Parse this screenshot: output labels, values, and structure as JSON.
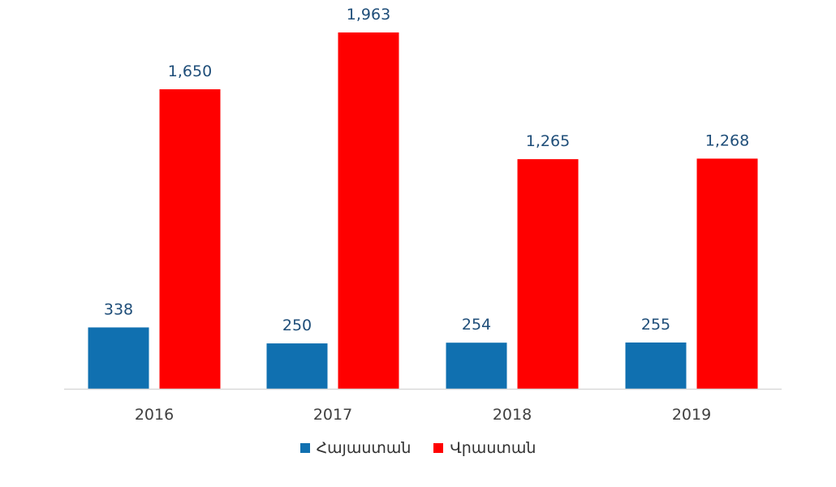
{
  "chart_data": {
    "type": "bar",
    "categories": [
      "2016",
      "2017",
      "2018",
      "2019"
    ],
    "series": [
      {
        "name": "Հայաստան",
        "values": [
          338,
          250,
          254,
          255
        ],
        "color": "#1070b0",
        "labels": [
          "338",
          "250",
          "254",
          "255"
        ]
      },
      {
        "name": "Վրաստան",
        "values": [
          1650,
          1963,
          1265,
          1268
        ],
        "color": "#ff0000",
        "labels": [
          "1,650",
          "1,963",
          "1,265",
          "1,268"
        ]
      }
    ],
    "ylim": [
      0,
      2000
    ],
    "grid": false,
    "legend_position": "bottom",
    "label_color": "#1f4e79",
    "axis_color": "#d9d9d9",
    "tick_color": "#404040"
  }
}
